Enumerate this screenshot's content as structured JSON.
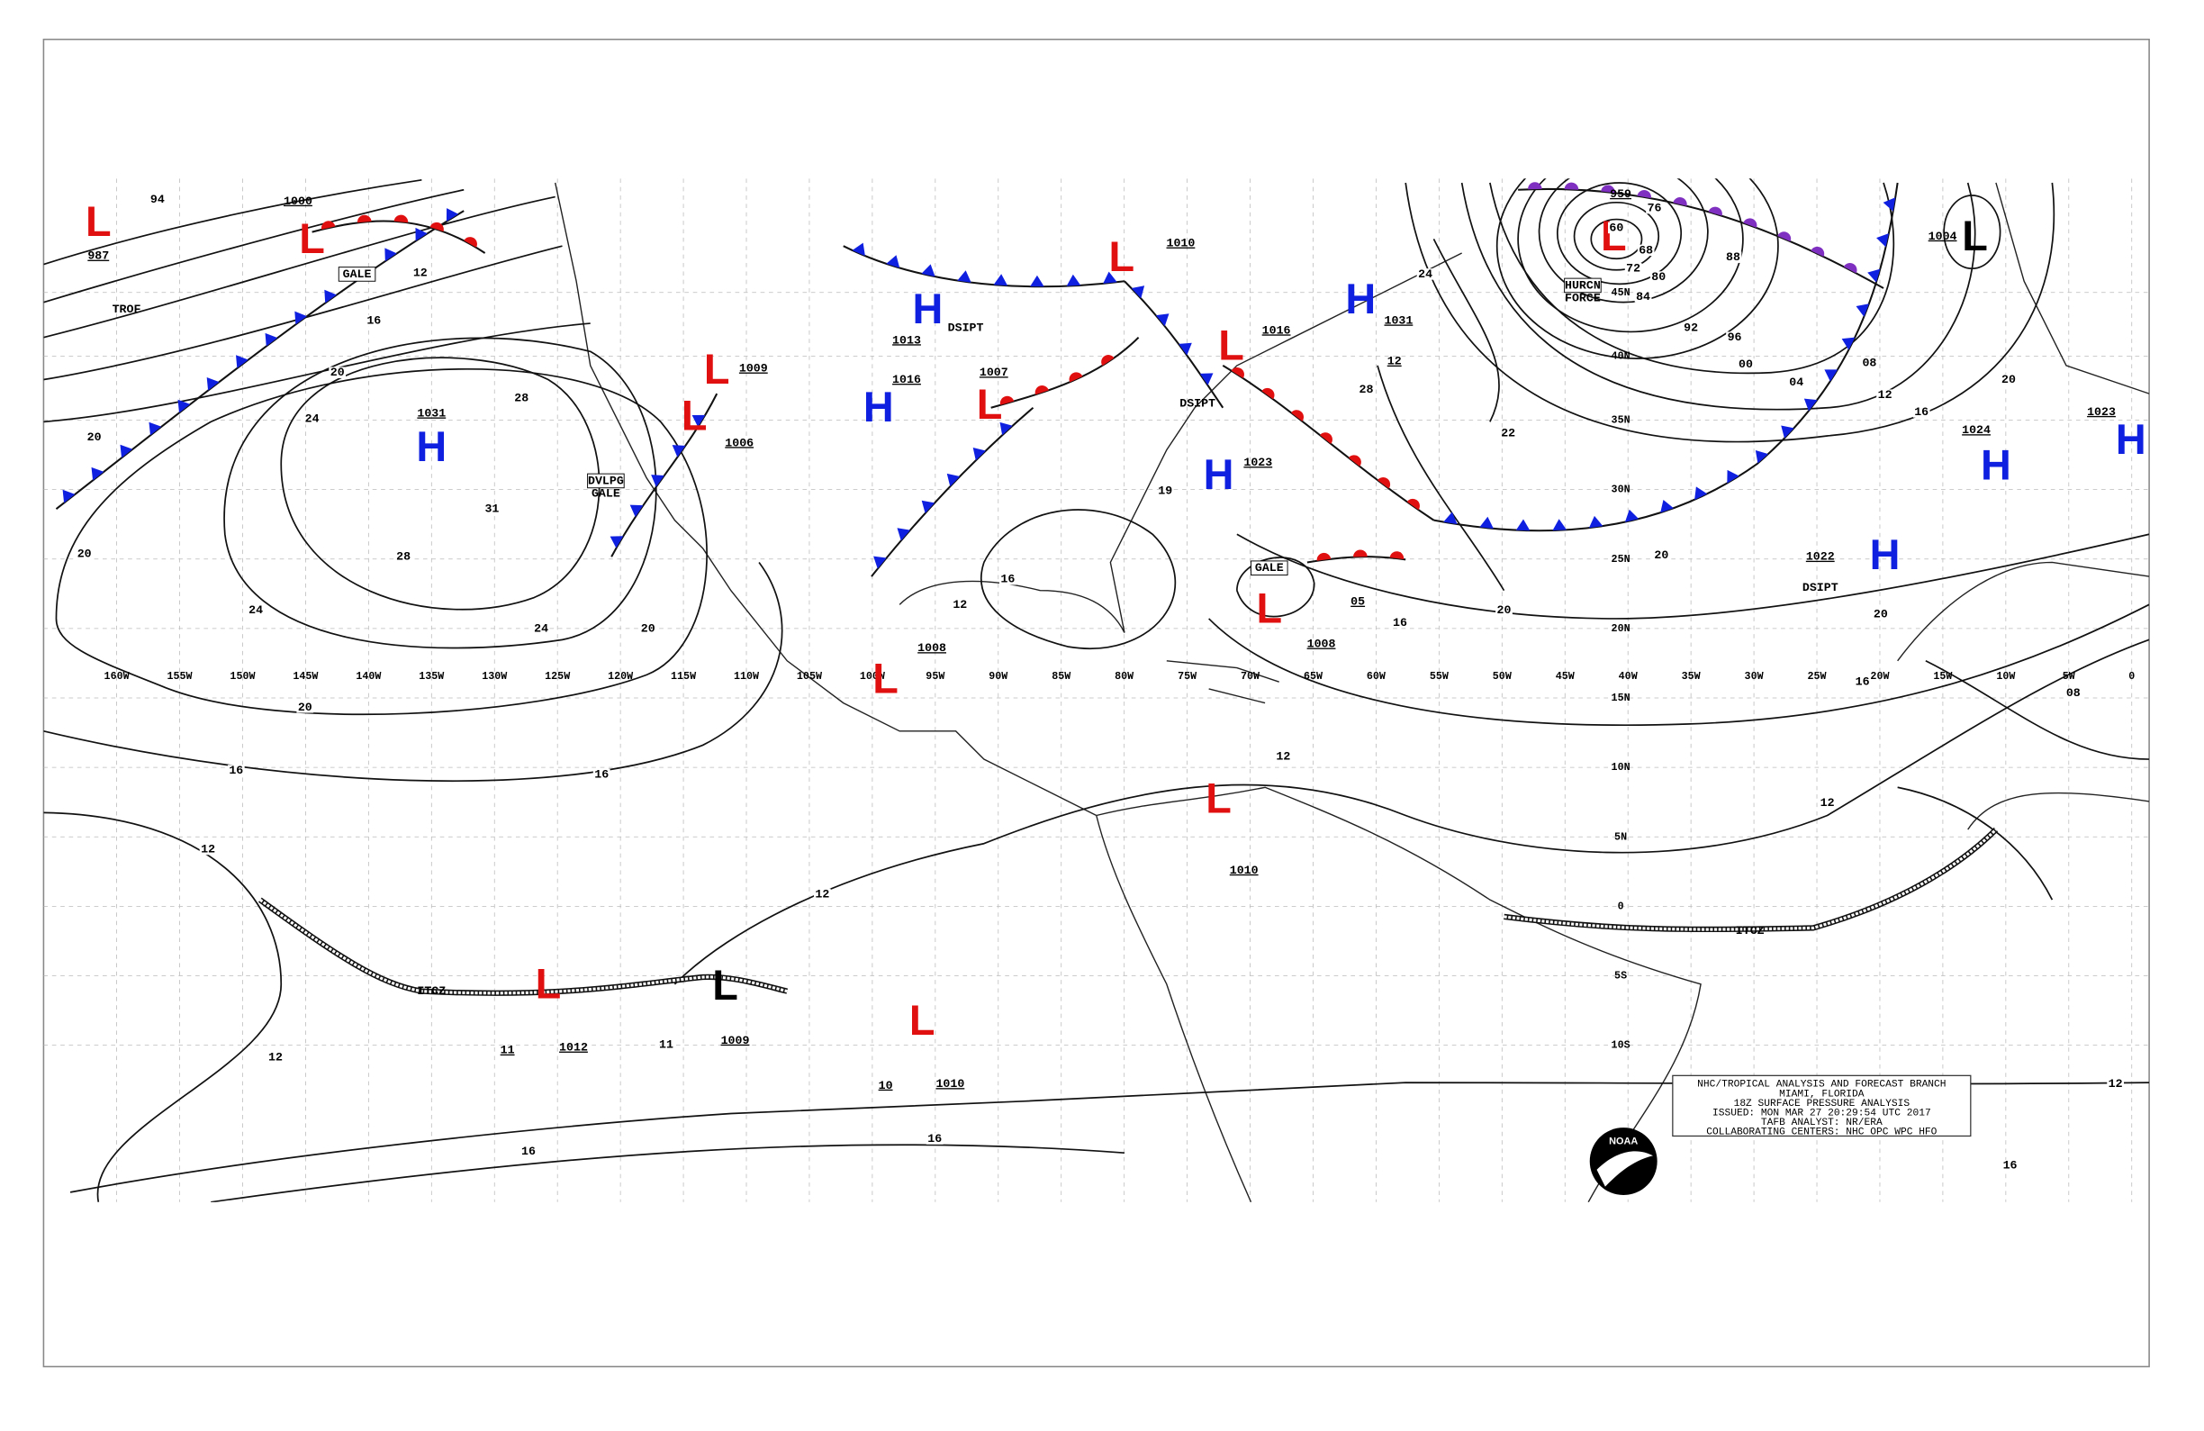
{
  "map": {
    "title_lines": [
      "NHC/TROPICAL ANALYSIS AND FORECAST BRANCH",
      "MIAMI, FLORIDA",
      "18Z SURFACE PRESSURE ANALYSIS",
      "ISSUED: MON MAR 27 20:29:54 UTC 2017",
      "TAFB ANALYST: NR/ERA",
      "COLLABORATING CENTERS: NHC OPC WPC HFO"
    ],
    "logo": "NOAA",
    "longitudes": [
      "160W",
      "155W",
      "150W",
      "145W",
      "140W",
      "135W",
      "130W",
      "125W",
      "120W",
      "115W",
      "110W",
      "105W",
      "100W",
      "95W",
      "90W",
      "85W",
      "80W",
      "75W",
      "70W",
      "65W",
      "60W",
      "55W",
      "50W",
      "45W",
      "40W",
      "35W",
      "30W",
      "25W",
      "20W",
      "15W",
      "10W",
      "5W",
      "0"
    ],
    "latitudes": [
      "45N",
      "40N",
      "35N",
      "30N",
      "25N",
      "20N",
      "15N",
      "10N",
      "5N",
      "0",
      "5S",
      "10S"
    ],
    "centers": [
      {
        "symbol": "L",
        "pressure": "987",
        "color": "#e01010"
      },
      {
        "symbol": "L",
        "pressure": "1000",
        "color": "#e01010"
      },
      {
        "symbol": "H",
        "pressure": "1031",
        "color": "#1020e0"
      },
      {
        "symbol": "L",
        "pressure": "1009",
        "color": "#e01010"
      },
      {
        "symbol": "L",
        "pressure": "1006",
        "color": "#e01010"
      },
      {
        "symbol": "H",
        "pressure": "1013",
        "color": "#1020e0"
      },
      {
        "symbol": "H",
        "pressure": "1016",
        "color": "#1020e0"
      },
      {
        "symbol": "L",
        "pressure": "1007",
        "color": "#e01010"
      },
      {
        "symbol": "L",
        "pressure": "1008",
        "color": "#e01010"
      },
      {
        "symbol": "L",
        "pressure": "1010",
        "color": "#e01010"
      },
      {
        "symbol": "H",
        "pressure": "1031",
        "color": "#1020e0"
      },
      {
        "symbol": "L",
        "pressure": "1016",
        "color": "#e01010"
      },
      {
        "symbol": "H",
        "pressure": "1023",
        "color": "#1020e0"
      },
      {
        "symbol": "L",
        "pressure": "1008",
        "color": "#e01010"
      },
      {
        "symbol": "L",
        "pressure": "959",
        "color": "#e01010"
      },
      {
        "symbol": "L",
        "pressure": "1004",
        "color": "#000000"
      },
      {
        "symbol": "H",
        "pressure": "1024",
        "color": "#1020e0"
      },
      {
        "symbol": "H",
        "pressure": "1022",
        "color": "#1020e0"
      },
      {
        "symbol": "H",
        "pressure": "1023",
        "color": "#1020e0"
      },
      {
        "symbol": "L",
        "pressure": "1010",
        "color": "#e01010"
      },
      {
        "symbol": "L",
        "pressure": "1012",
        "color": "#e01010"
      },
      {
        "symbol": "L",
        "pressure": "1009",
        "color": "#000000"
      },
      {
        "symbol": "L",
        "pressure": "1010",
        "color": "#e01010"
      }
    ],
    "isobar_labels": [
      "94",
      "12",
      "16",
      "20",
      "24",
      "28",
      "28",
      "24",
      "24",
      "20",
      "20",
      "20",
      "16",
      "16",
      "12",
      "12",
      "16",
      "16",
      "12",
      "12",
      "12",
      "12",
      "16",
      "16",
      "20",
      "20",
      "20",
      "20",
      "16",
      "12",
      "08",
      "04",
      "00",
      "96",
      "92",
      "88",
      "84",
      "80",
      "76",
      "72",
      "68",
      "60",
      "24",
      "08",
      "16",
      "12"
    ],
    "annotations": [
      "GALE",
      "TROF",
      "DVLPG",
      "GALE",
      "DSIPT",
      "DSIPT",
      "DSIPT",
      "HURCN",
      "FORCE",
      "GALE",
      "ITCZ",
      "ITCZ",
      "20",
      "31",
      "22",
      "12",
      "28",
      "19",
      "11",
      "11",
      "10",
      "05",
      "16"
    ]
  }
}
